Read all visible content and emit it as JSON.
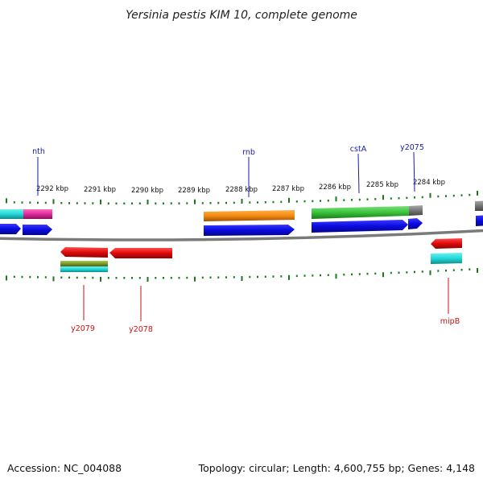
{
  "title": "Yersinia pestis KIM 10, complete genome",
  "footer": {
    "accession": "Accession: NC_004088",
    "summary": "Topology: circular; Length: 4,600,755 bp; Genes: 4,148"
  },
  "scale_labels": [
    "2292 kbp",
    "2291 kbp",
    "2290 kbp",
    "2289 kbp",
    "2288 kbp",
    "2287 kbp",
    "2286 kbp",
    "2285 kbp",
    "2284 kbp"
  ],
  "gene_labels": {
    "forward": [
      "nth",
      "rnb",
      "cstA",
      "y2075"
    ],
    "reverse": [
      "y2079",
      "y2078",
      "mipB"
    ]
  },
  "colors": {
    "forward_label": "#1a1aaa",
    "reverse_label": "#cc1111",
    "tick": "#1a7a1a",
    "backbone": "#7a7a7a",
    "gene_blue": "#0a0ae0",
    "gene_red": "#e00a0a",
    "cyan": "#22d8d8",
    "magenta": "#e02a9a",
    "orange": "#f48a10",
    "green": "#3ac23a",
    "olive": "#7a9a2a",
    "gray": "#777777"
  }
}
